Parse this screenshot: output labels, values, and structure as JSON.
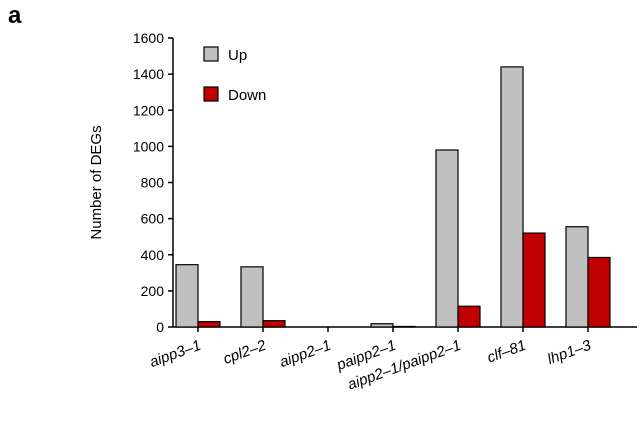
{
  "panel_letter": "a",
  "chart_data": {
    "type": "bar",
    "categories": [
      "aipp3–1",
      "cpl2–2",
      "aipp2–1",
      "paipp2–1",
      "aipp2–1/paipp2–1",
      "clf–81",
      "lhp1–3"
    ],
    "series": [
      {
        "name": "Up",
        "color": "#c0c0c0",
        "values": [
          345,
          333,
          0,
          18,
          980,
          1440,
          555
        ]
      },
      {
        "name": "Down",
        "color": "#c00000",
        "values": [
          30,
          35,
          0,
          3,
          115,
          520,
          385
        ]
      }
    ],
    "title": "",
    "xlabel": "",
    "ylabel": "Number of DEGs",
    "ylim": [
      0,
      1600
    ],
    "yticks": [
      0,
      200,
      400,
      600,
      800,
      1000,
      1200,
      1400,
      1600
    ],
    "grid": false,
    "legend": "top-left"
  }
}
